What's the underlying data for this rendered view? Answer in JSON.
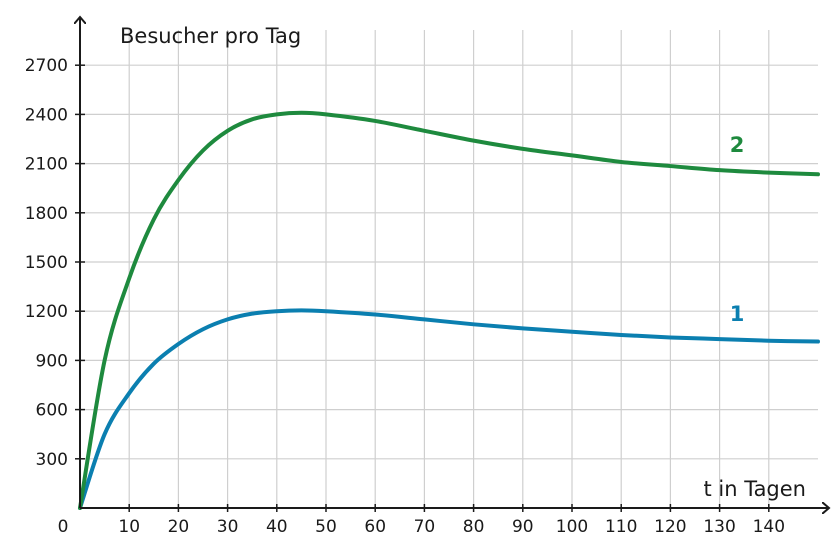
{
  "chart_data": {
    "type": "line",
    "title": "",
    "ylabel": "Besucher pro Tag",
    "xlabel": "t in Tagen",
    "x_ticks": [
      0,
      10,
      20,
      30,
      40,
      50,
      60,
      70,
      80,
      90,
      100,
      110,
      120,
      130,
      140
    ],
    "y_ticks": [
      300,
      600,
      900,
      1200,
      1500,
      1800,
      2100,
      2400,
      2700
    ],
    "xlim": [
      0,
      150
    ],
    "ylim": [
      0,
      2900
    ],
    "grid": true,
    "series": [
      {
        "name": "1",
        "color": "#0b7fb0",
        "x": [
          0,
          5,
          10,
          15,
          20,
          25,
          30,
          35,
          40,
          45,
          50,
          60,
          70,
          80,
          90,
          100,
          110,
          120,
          130,
          140,
          150
        ],
        "y": [
          0,
          450,
          700,
          880,
          1000,
          1090,
          1150,
          1185,
          1200,
          1205,
          1200,
          1180,
          1150,
          1120,
          1095,
          1075,
          1055,
          1040,
          1030,
          1020,
          1015
        ]
      },
      {
        "name": "2",
        "color": "#1e8a3e",
        "x": [
          0,
          5,
          10,
          15,
          20,
          25,
          30,
          35,
          40,
          45,
          50,
          60,
          70,
          80,
          90,
          100,
          110,
          120,
          130,
          140,
          150
        ],
        "y": [
          0,
          900,
          1400,
          1760,
          2000,
          2180,
          2300,
          2370,
          2400,
          2410,
          2400,
          2360,
          2300,
          2240,
          2190,
          2150,
          2110,
          2085,
          2060,
          2045,
          2035
        ]
      }
    ]
  }
}
